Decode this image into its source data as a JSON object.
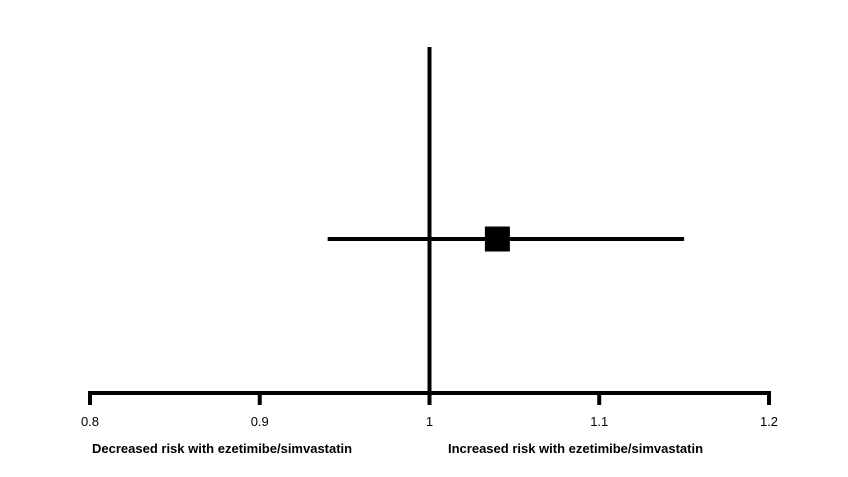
{
  "chart_data": {
    "type": "scatter",
    "subtype": "forest-plot",
    "title": "",
    "xlabel": "",
    "ylabel": "",
    "xlim": [
      0.8,
      1.2
    ],
    "reference_line": 1.0,
    "grid": false,
    "x_ticks": [
      {
        "value": 0.8,
        "label": "0.8"
      },
      {
        "value": 0.9,
        "label": "0.9"
      },
      {
        "value": 1.0,
        "label": "1"
      },
      {
        "value": 1.1,
        "label": "1.1"
      },
      {
        "value": 1.2,
        "label": "1.2"
      }
    ],
    "points": [
      {
        "estimate": 1.04,
        "lower": 0.94,
        "upper": 1.15
      }
    ],
    "side_labels": {
      "left": "Decreased risk with ezetimibe/simvastatin",
      "right": "Increased risk with ezetimibe/simvastatin"
    },
    "colors": {
      "ink": "#000000",
      "background": "#ffffff"
    }
  }
}
